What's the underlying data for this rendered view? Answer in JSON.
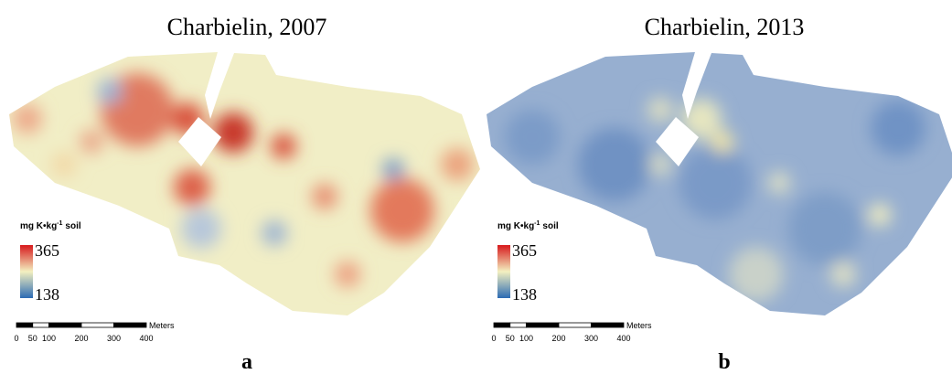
{
  "panels": [
    {
      "title": "Charbielin, 2007",
      "legend": {
        "title": [
          "mg K•kg",
          "-1",
          "soil"
        ],
        "max": 365,
        "min": 138
      },
      "scale": {
        "ticks": [
          0,
          50,
          100,
          200,
          300,
          400
        ],
        "unit": "Meters"
      },
      "label": "a"
    },
    {
      "title": "Charbielin, 2013",
      "legend": {
        "title": [
          "mg K•kg",
          "-1",
          "soil"
        ],
        "max": 365,
        "min": 138
      },
      "scale": {
        "ticks": [
          0,
          50,
          100,
          200,
          300,
          400
        ],
        "unit": "Meters"
      },
      "label": "b"
    }
  ]
}
